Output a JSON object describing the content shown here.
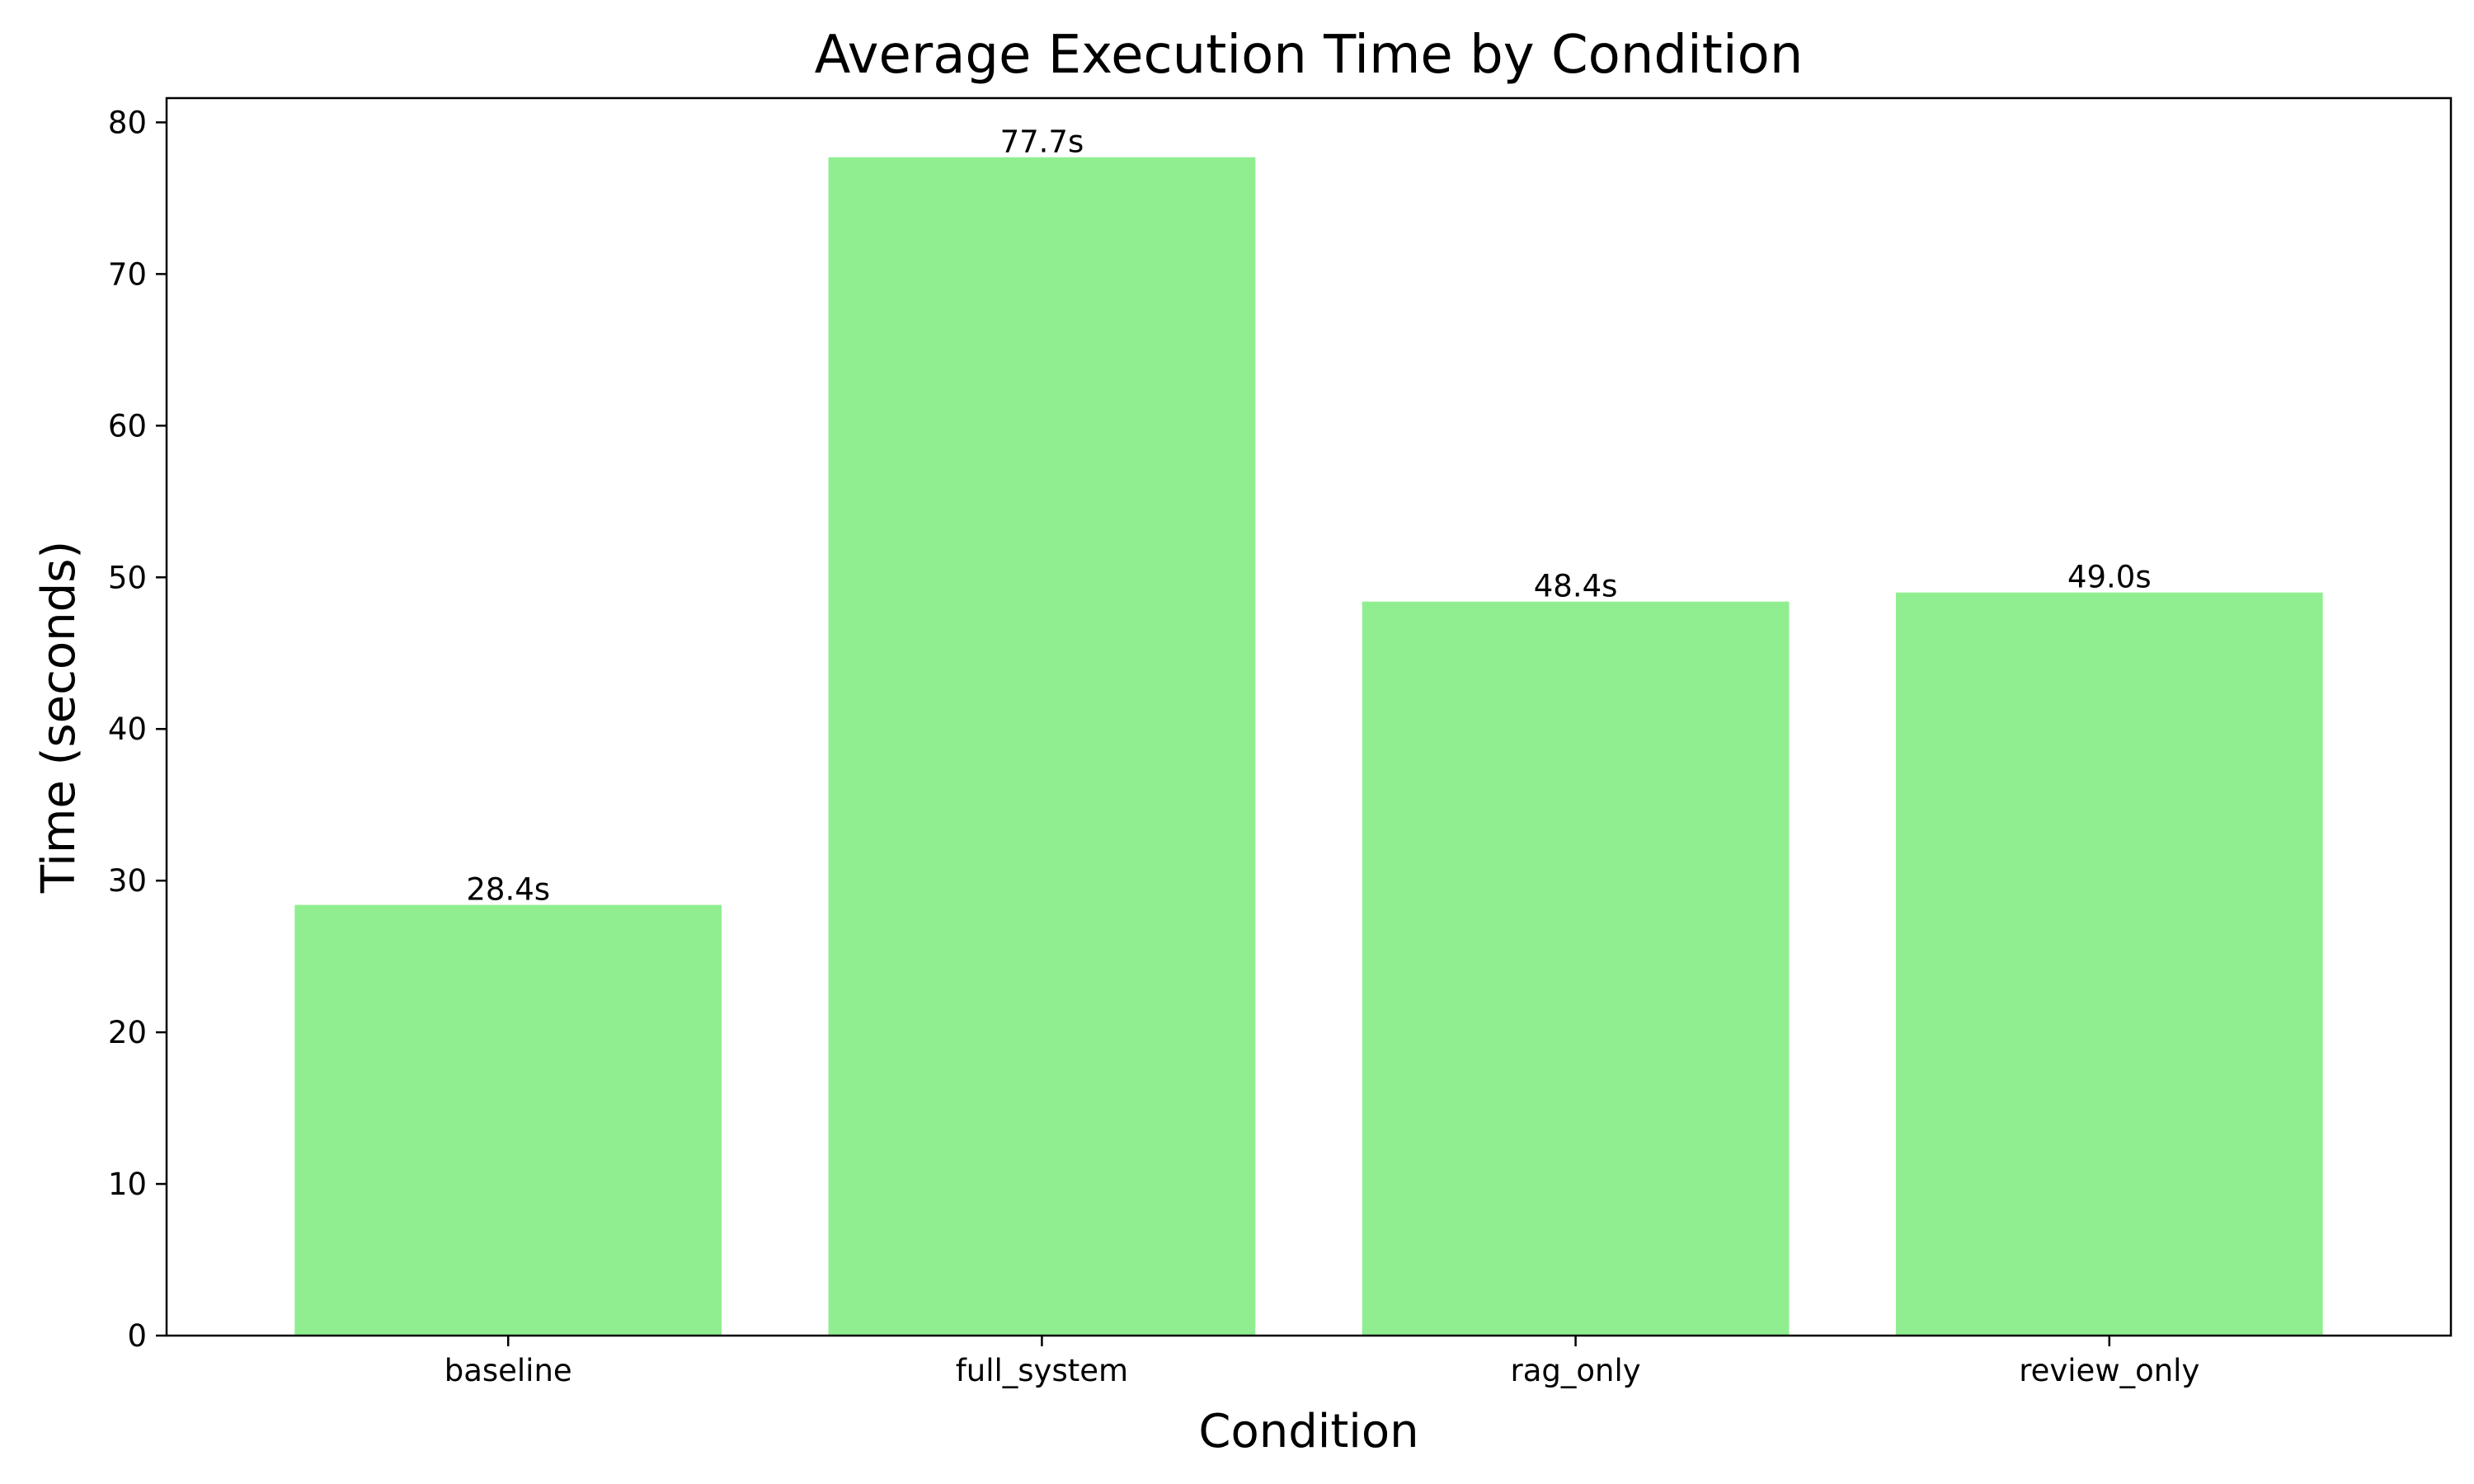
{
  "chart_data": {
    "type": "bar",
    "title": "Average Execution Time by Condition",
    "xlabel": "Condition",
    "ylabel": "Time (seconds)",
    "categories": [
      "baseline",
      "full_system",
      "rag_only",
      "review_only"
    ],
    "values": [
      28.4,
      77.7,
      48.4,
      49.0
    ],
    "value_labels": [
      "28.4s",
      "77.7s",
      "48.4s",
      "49.0s"
    ],
    "ylim": [
      0,
      81.6
    ],
    "yticks": [
      0,
      10,
      20,
      30,
      40,
      50,
      60,
      70,
      80
    ],
    "grid": false,
    "legend": "none",
    "bar_color": "#90ee90"
  }
}
